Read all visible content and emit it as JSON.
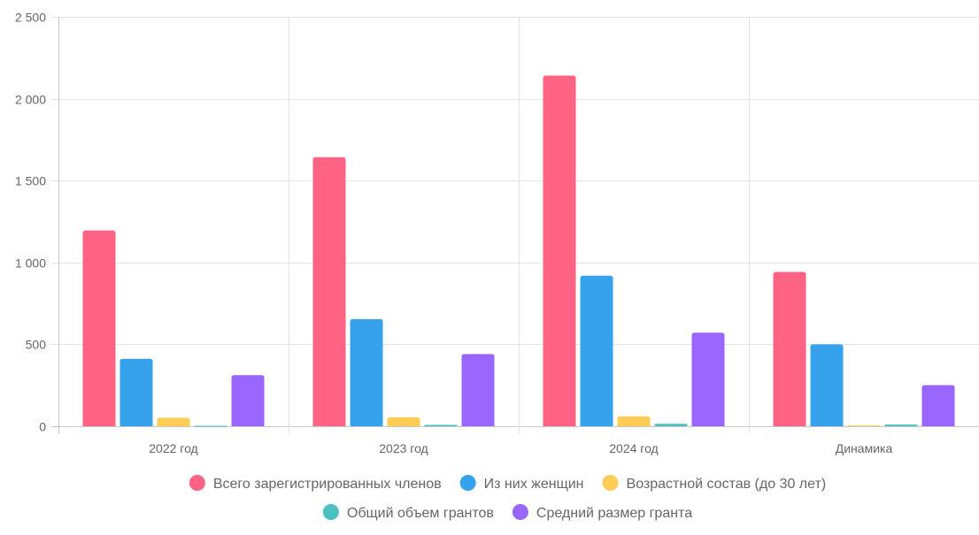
{
  "chart_data": {
    "type": "bar",
    "title": "",
    "xlabel": "",
    "ylabel": "",
    "categories": [
      "2022 год",
      "2023 год",
      "2024 год",
      "Динамика"
    ],
    "ylim": [
      0,
      2500
    ],
    "yticks": [
      0,
      500,
      1000,
      1500,
      2000,
      2500
    ],
    "ytick_labels": [
      "0",
      "500",
      "1 000",
      "1 500",
      "2 000",
      "2 500"
    ],
    "grid": true,
    "legend_position": "bottom",
    "series": [
      {
        "name": "Всего зарегистрированных членов",
        "color": "#ff6384",
        "values": [
          1195,
          1643,
          2141,
          942
        ]
      },
      {
        "name": "Из них женщин",
        "color": "#36a2eb",
        "values": [
          412,
          654,
          919,
          500
        ]
      },
      {
        "name": "Возрастной состав (до 30 лет)",
        "color": "#ffcd56",
        "values": [
          52,
          55,
          60,
          5
        ]
      },
      {
        "name": "Общий объем грантов",
        "color": "#4bc0c0",
        "values": [
          3,
          8,
          15,
          10
        ]
      },
      {
        "name": "Средний размер гранта",
        "color": "#9966ff",
        "values": [
          312,
          441,
          571,
          251
        ]
      }
    ]
  }
}
